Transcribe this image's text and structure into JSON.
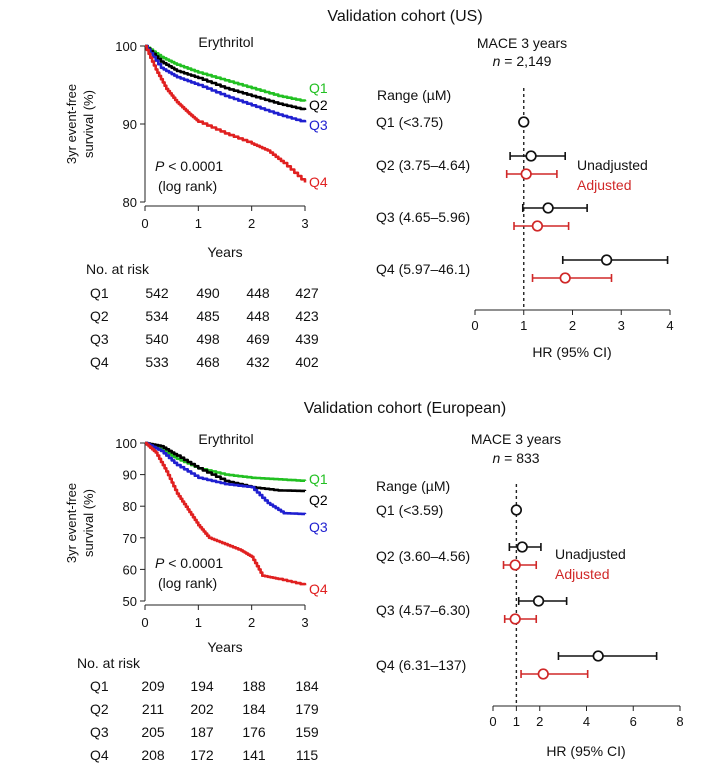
{
  "colors": {
    "q1": "#22c022",
    "q2": "#000000",
    "q3": "#1f1fd0",
    "q4": "#e02020",
    "unadjusted": "#111111",
    "adjusted": "#d02828"
  },
  "chart_data": [
    {
      "panel": "us",
      "title": "Validation cohort (US)",
      "km": {
        "type": "line",
        "title": "Erythritol",
        "ylabel_lines": [
          "3yr event-free",
          "survival (%)"
        ],
        "xlabel": "Years",
        "xlim": [
          0,
          3
        ],
        "ylim": [
          80,
          100
        ],
        "xticks": [
          0,
          1,
          2,
          3
        ],
        "yticks": [
          80,
          90,
          100
        ],
        "p_value_prefix": "P",
        "p_value_rest": " < 0.0001",
        "test": "(log rank)",
        "series": [
          {
            "name": "Q1",
            "x": [
              0,
              0.3,
              0.6,
              1.0,
              1.5,
              2.0,
              2.5,
              3.0
            ],
            "y": [
              100,
              98.6,
              97.6,
              96.6,
              95.6,
              94.6,
              93.6,
              92.9
            ]
          },
          {
            "name": "Q2",
            "x": [
              0,
              0.3,
              0.6,
              1.0,
              1.5,
              2.0,
              2.5,
              3.0
            ],
            "y": [
              100,
              98.0,
              96.8,
              95.9,
              94.6,
              93.6,
              92.6,
              91.8
            ]
          },
          {
            "name": "Q3",
            "x": [
              0,
              0.3,
              0.6,
              1.0,
              1.5,
              2.0,
              2.5,
              3.0
            ],
            "y": [
              100,
              97.2,
              96.0,
              95.0,
              93.6,
              92.4,
              91.2,
              90.2
            ]
          },
          {
            "name": "Q4",
            "x": [
              0,
              0.2,
              0.4,
              0.6,
              0.8,
              1.0,
              1.5,
              2.0,
              2.3,
              2.6,
              3.0
            ],
            "y": [
              100,
              97.0,
              94.5,
              92.8,
              91.5,
              90.3,
              88.8,
              87.5,
              86.6,
              85.0,
              82.5
            ]
          }
        ]
      },
      "risk_table": {
        "title": "No. at risk",
        "rows": [
          {
            "label": "Q1",
            "values": [
              "542",
              "490",
              "448",
              "427"
            ]
          },
          {
            "label": "Q2",
            "values": [
              "534",
              "485",
              "448",
              "423"
            ]
          },
          {
            "label": "Q3",
            "values": [
              "540",
              "498",
              "469",
              "439"
            ]
          },
          {
            "label": "Q4",
            "values": [
              "533",
              "468",
              "432",
              "402"
            ]
          }
        ]
      },
      "forest": {
        "type": "scatter",
        "title": "MACE 3 years",
        "n_prefix": "n",
        "n_rest": " = 2,149",
        "range_header": "Range (µM)",
        "xlabel": "HR (95% CI)",
        "xlim": [
          0,
          4
        ],
        "xticks": [
          0,
          1,
          2,
          3,
          4
        ],
        "reference": 1,
        "legend": {
          "unadjusted": "Unadjusted",
          "adjusted": "Adjusted"
        },
        "rows": [
          {
            "label": "Q1 (<3.75)",
            "reference_point": 1
          },
          {
            "label": "Q2 (3.75–4.64)",
            "unadjusted": {
              "hr": 1.15,
              "lo": 0.72,
              "hi": 1.85
            },
            "adjusted": {
              "hr": 1.05,
              "lo": 0.65,
              "hi": 1.68
            }
          },
          {
            "label": "Q3 (4.65–5.96)",
            "unadjusted": {
              "hr": 1.5,
              "lo": 0.98,
              "hi": 2.3
            },
            "adjusted": {
              "hr": 1.28,
              "lo": 0.8,
              "hi": 1.92
            }
          },
          {
            "label": "Q4 (5.97–46.1)",
            "unadjusted": {
              "hr": 2.7,
              "lo": 1.8,
              "hi": 3.95
            },
            "adjusted": {
              "hr": 1.85,
              "lo": 1.18,
              "hi": 2.8
            }
          }
        ]
      }
    },
    {
      "panel": "eu",
      "title": "Validation cohort (European)",
      "km": {
        "type": "line",
        "title": "Erythritol",
        "ylabel_lines": [
          "3yr event-free",
          "survival (%)"
        ],
        "xlabel": "Years",
        "xlim": [
          0,
          3
        ],
        "ylim": [
          50,
          100
        ],
        "xticks": [
          0,
          1,
          2,
          3
        ],
        "yticks": [
          50,
          60,
          70,
          80,
          90,
          100
        ],
        "p_value_prefix": "P",
        "p_value_rest": " < 0.0001",
        "test": "(log rank)",
        "series": [
          {
            "name": "Q1",
            "x": [
              0,
              0.3,
              0.6,
              1.0,
              1.5,
              2.0,
              2.5,
              3.0
            ],
            "y": [
              100,
              98.0,
              95.0,
              92.0,
              90.0,
              89.0,
              88.5,
              88.0
            ]
          },
          {
            "name": "Q2",
            "x": [
              0,
              0.3,
              0.6,
              1.0,
              1.5,
              2.0,
              2.5,
              3.0
            ],
            "y": [
              100,
              99.0,
              96.0,
              92.0,
              88.0,
              86.0,
              85.0,
              84.8
            ]
          },
          {
            "name": "Q3",
            "x": [
              0,
              0.3,
              0.6,
              1.0,
              1.5,
              2.0,
              2.3,
              2.6,
              3.0
            ],
            "y": [
              100,
              97.5,
              93.0,
              89.0,
              87.0,
              86.0,
              81.0,
              77.8,
              77.5
            ]
          },
          {
            "name": "Q4",
            "x": [
              0,
              0.2,
              0.4,
              0.6,
              0.8,
              1.0,
              1.2,
              1.5,
              1.8,
              2.0,
              2.2,
              2.5,
              3.0
            ],
            "y": [
              100,
              97.0,
              91.0,
              84.0,
              79.0,
              74.0,
              70.0,
              68.0,
              66.0,
              64.0,
              58.0,
              57.0,
              55.0
            ]
          }
        ]
      },
      "risk_table": {
        "title": "No. at risk",
        "rows": [
          {
            "label": "Q1",
            "values": [
              "209",
              "194",
              "188",
              "184"
            ]
          },
          {
            "label": "Q2",
            "values": [
              "211",
              "202",
              "184",
              "179"
            ]
          },
          {
            "label": "Q3",
            "values": [
              "205",
              "187",
              "176",
              "159"
            ]
          },
          {
            "label": "Q4",
            "values": [
              "208",
              "172",
              "141",
              "115"
            ]
          }
        ]
      },
      "forest": {
        "type": "scatter",
        "title": "MACE 3 years",
        "n_prefix": "n",
        "n_rest": " = 833",
        "range_header": "Range (µM)",
        "xlabel": "HR (95% CI)",
        "xlim": [
          0,
          8
        ],
        "xticks": [
          0,
          1,
          2,
          4,
          6,
          8
        ],
        "reference": 1,
        "legend": {
          "unadjusted": "Unadjusted",
          "adjusted": "Adjusted"
        },
        "rows": [
          {
            "label": "Q1 (<3.59)",
            "reference_point": 1
          },
          {
            "label": "Q2 (3.60–4.56)",
            "unadjusted": {
              "hr": 1.25,
              "lo": 0.7,
              "hi": 2.05
            },
            "adjusted": {
              "hr": 0.95,
              "lo": 0.45,
              "hi": 1.85
            }
          },
          {
            "label": "Q3 (4.57–6.30)",
            "unadjusted": {
              "hr": 1.95,
              "lo": 1.1,
              "hi": 3.15
            },
            "adjusted": {
              "hr": 0.95,
              "lo": 0.5,
              "hi": 1.85
            }
          },
          {
            "label": "Q4 (6.31–137)",
            "unadjusted": {
              "hr": 4.5,
              "lo": 2.8,
              "hi": 7.0
            },
            "adjusted": {
              "hr": 2.15,
              "lo": 1.2,
              "hi": 4.05
            }
          }
        ]
      }
    }
  ]
}
